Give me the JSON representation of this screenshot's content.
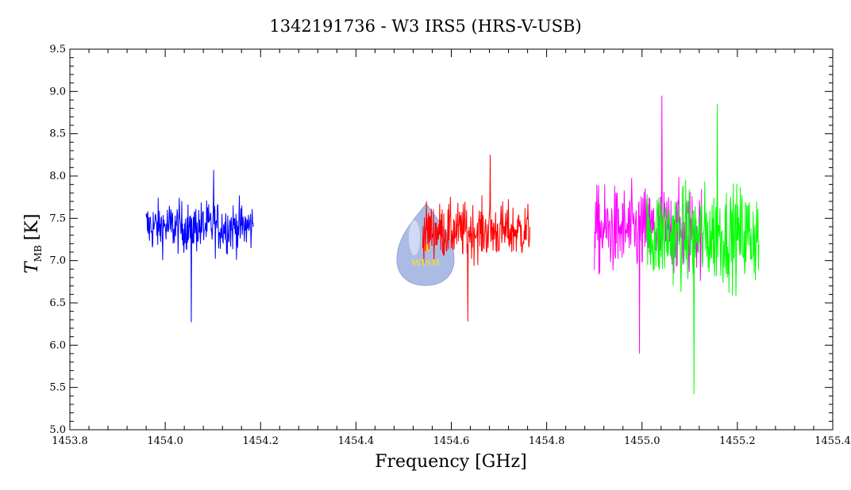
{
  "chart_data": {
    "type": "line",
    "title": "1342191736 - W3 IRS5 (HRS-V-USB)",
    "xlabel": "Frequency [GHz]",
    "ylabel_main": "T",
    "ylabel_sub": "MB",
    "ylabel_unit": "[K]",
    "xlim": [
      1453.8,
      1455.4
    ],
    "ylim": [
      5.0,
      9.5
    ],
    "x_ticks": [
      "1453.8",
      "1454.0",
      "1454.2",
      "1454.4",
      "1454.6",
      "1454.8",
      "1455.0",
      "1455.2",
      "1455.4"
    ],
    "y_ticks": [
      "5.0",
      "5.5",
      "6.0",
      "6.5",
      "7.0",
      "7.5",
      "8.0",
      "8.5",
      "9.0",
      "9.5"
    ],
    "series": [
      {
        "color": "#0000ff",
        "x_range": [
          1453.96,
          1454.185
        ],
        "mean": 7.4,
        "min": 6.27,
        "max": 8.07
      },
      {
        "color": "#ff0000",
        "x_range": [
          1454.54,
          1454.765
        ],
        "mean": 7.35,
        "min": 6.28,
        "max": 8.25
      },
      {
        "color": "#ff00ff",
        "x_range": [
          1454.9,
          1455.125
        ],
        "mean": 7.35,
        "min": 5.9,
        "max": 8.95
      },
      {
        "color": "#00ff00",
        "x_range": [
          1455.01,
          1455.245
        ],
        "mean": 7.3,
        "min": 5.42,
        "max": 8.85
      }
    ],
    "grid": false,
    "legend": "none",
    "logo_text": "WISH"
  }
}
